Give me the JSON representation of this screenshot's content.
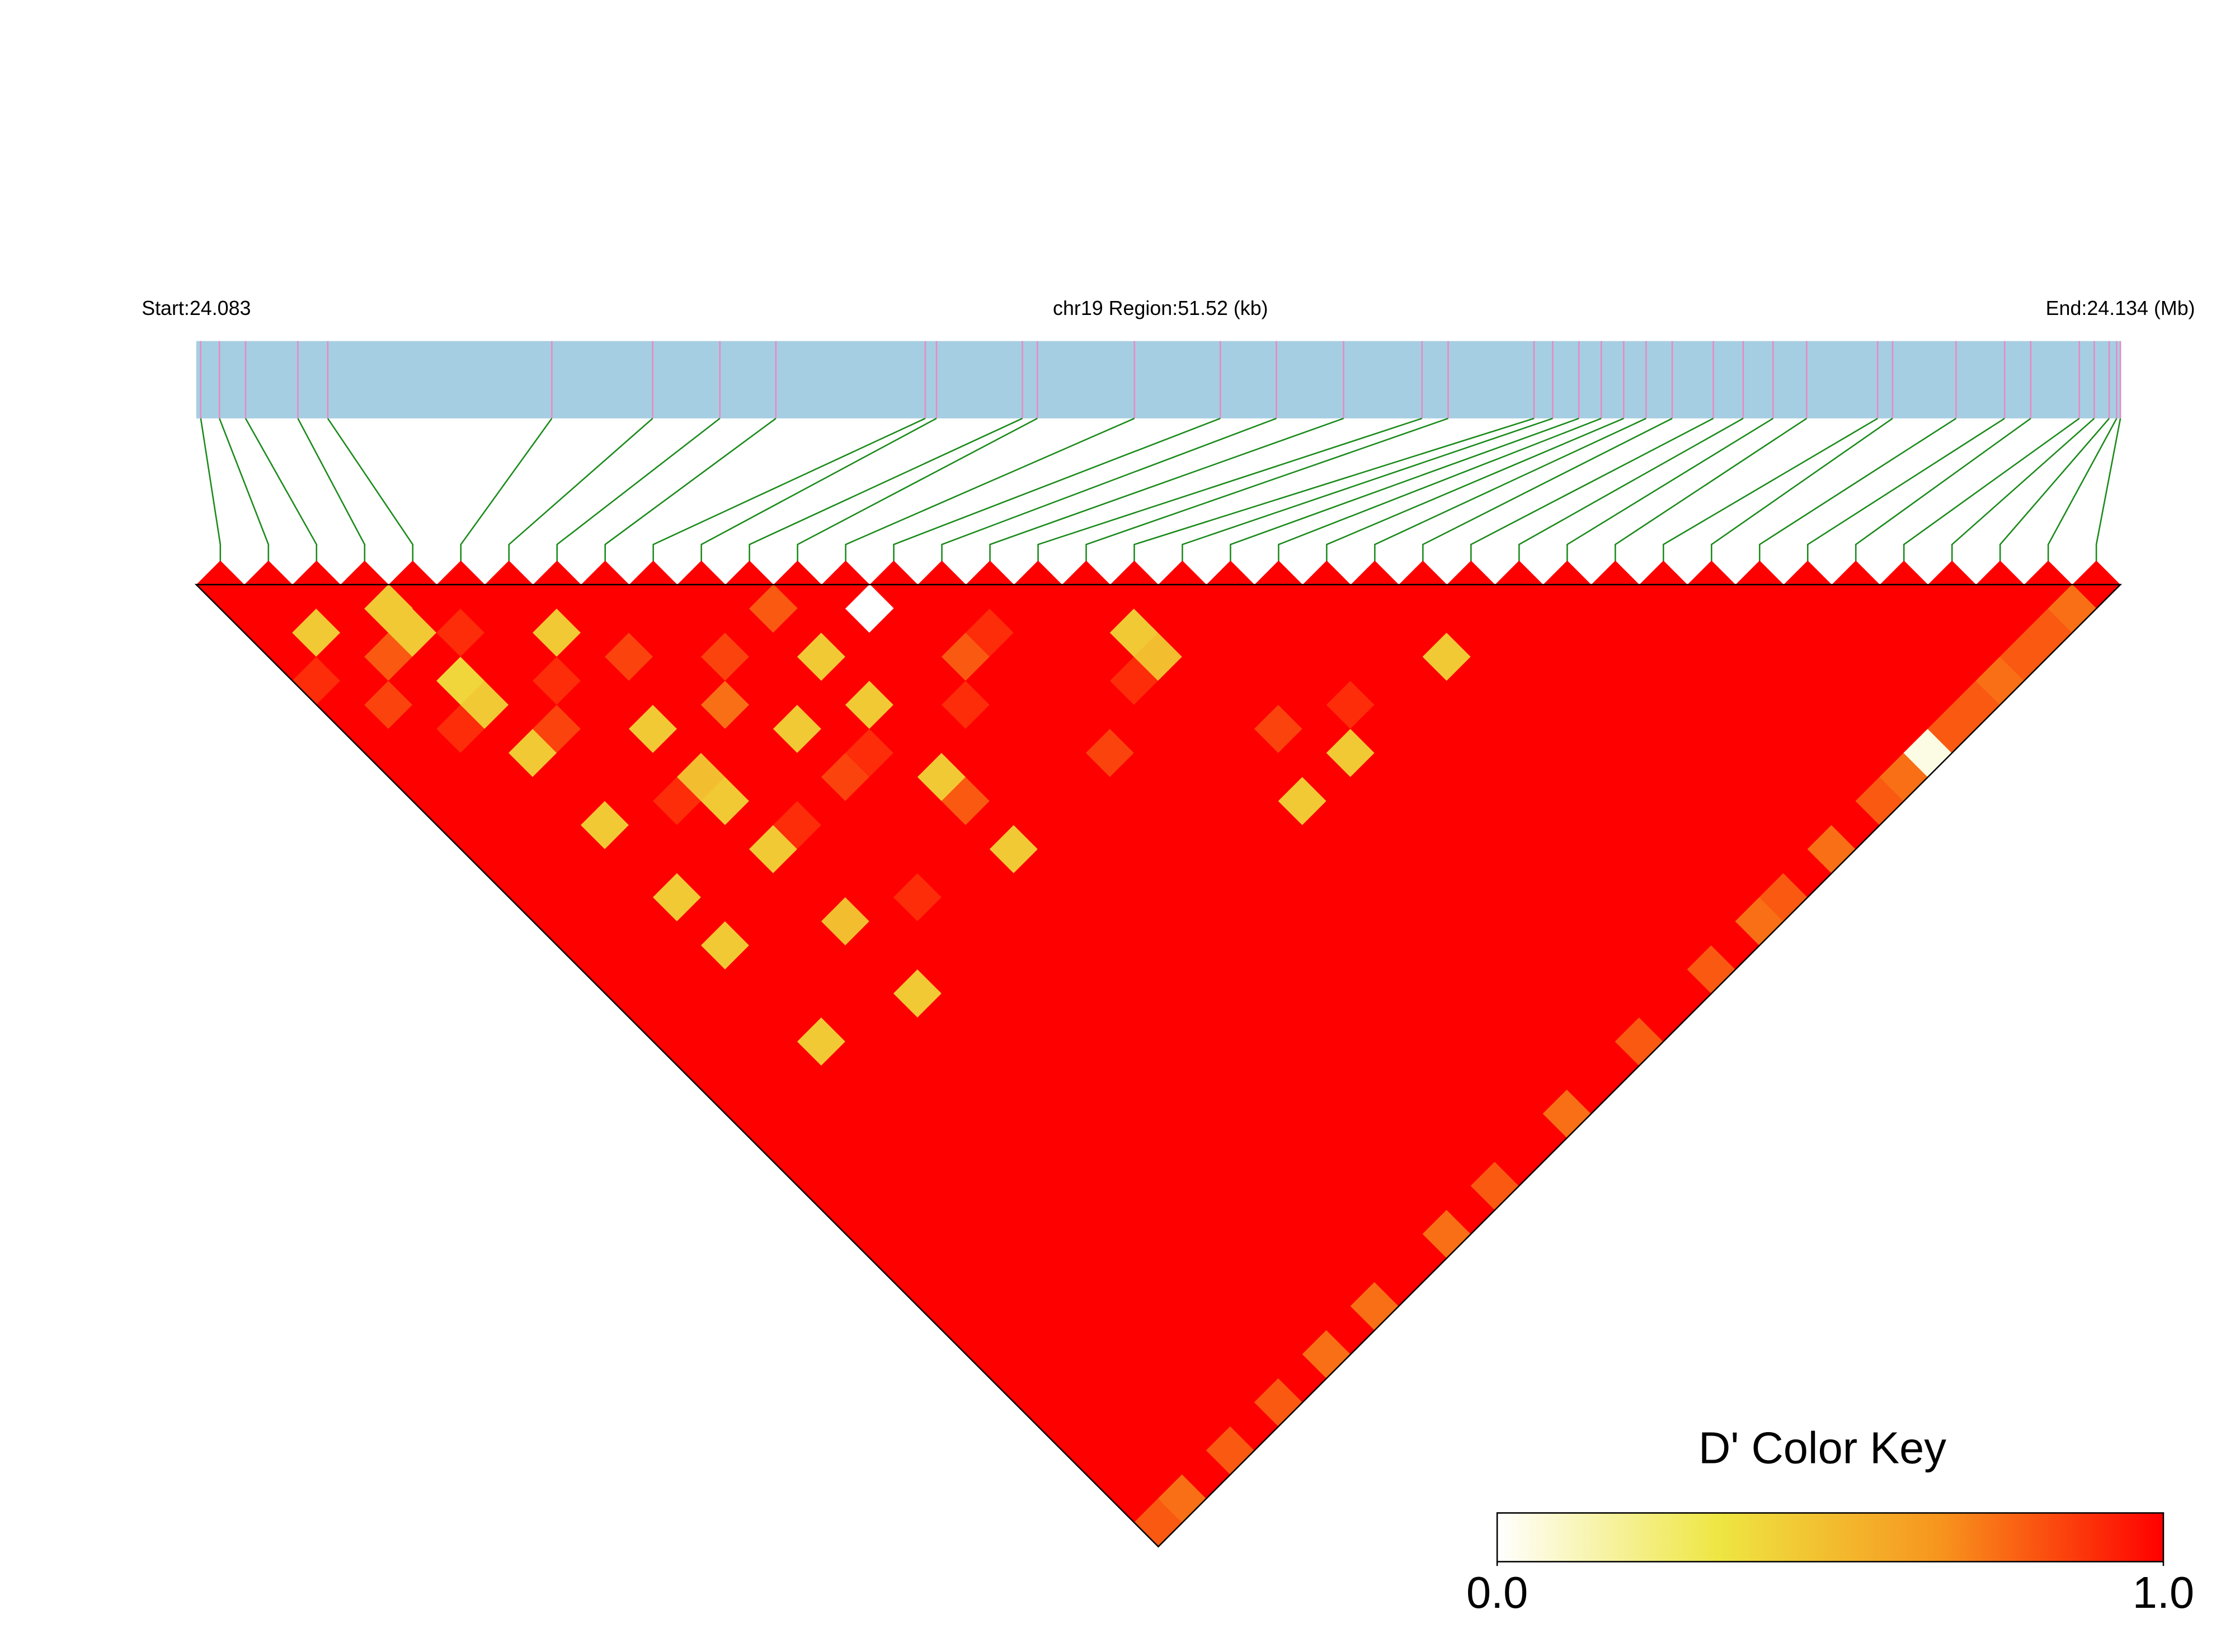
{
  "chart_data": {
    "type": "ld-heatmap",
    "start_label": "Start:24.083",
    "region_label": "chr19 Region:51.52 (kb)",
    "end_label": "End:24.134 (Mb)",
    "xlim": [
      24.08248,
      24.134
    ],
    "positions": [
      24.0826,
      24.0831,
      24.0838,
      24.0852,
      24.086,
      24.092,
      24.0947,
      24.0965,
      24.098,
      24.102,
      24.1023,
      24.1046,
      24.105,
      24.1076,
      24.1099,
      24.1114,
      24.1132,
      24.1153,
      24.116,
      24.1183,
      24.1188,
      24.1195,
      24.1201,
      24.1207,
      24.1213,
      24.122,
      24.1231,
      24.1239,
      24.1247,
      24.1256,
      24.1275,
      24.1279,
      24.1296,
      24.1309,
      24.1316,
      24.1329,
      24.1333,
      24.1337,
      24.1339,
      24.134
    ],
    "dprime": [
      [
        1,
        1,
        1,
        0.9,
        1,
        1,
        1,
        1,
        1,
        1,
        1,
        1,
        1,
        1,
        1,
        1,
        1,
        1,
        1,
        1,
        1,
        1,
        1,
        1,
        1,
        1,
        1,
        1,
        1,
        1,
        1,
        1,
        1,
        1,
        1,
        1,
        1,
        1,
        0.8
      ],
      [
        1,
        0.45,
        1,
        1,
        0.85,
        1,
        1,
        1,
        1,
        1,
        1,
        1,
        1,
        1,
        1,
        1,
        1,
        1,
        1,
        1,
        1,
        1,
        1,
        1,
        1,
        1,
        1,
        1,
        1,
        1,
        1,
        1,
        1,
        1,
        1,
        1,
        1,
        0.75
      ],
      [
        1,
        1,
        0.8,
        1,
        1,
        0.9,
        1,
        1,
        1,
        1,
        1,
        1,
        1,
        1,
        1,
        1,
        1,
        1,
        1,
        1,
        1,
        1,
        1,
        1,
        1,
        1,
        1,
        1,
        1,
        1,
        1,
        1,
        1,
        1,
        1,
        1,
        1
      ],
      [
        0.45,
        0.45,
        1,
        0.4,
        0.45,
        1,
        0.45,
        1,
        1,
        0.45,
        1,
        1,
        0.45,
        1,
        0.45,
        1,
        1,
        1,
        0.45,
        1,
        1,
        1,
        1,
        1,
        1,
        1,
        1,
        1,
        1,
        1,
        1,
        1,
        1,
        1,
        1,
        0.8
      ],
      [
        1,
        0.9,
        1,
        1,
        1,
        0.85,
        1,
        1,
        1,
        1,
        1,
        1,
        1,
        1,
        1,
        1,
        1,
        1,
        1,
        1,
        1,
        1,
        1,
        1,
        1,
        1,
        1,
        1,
        1,
        1,
        1,
        1,
        1,
        1,
        1
      ],
      [
        1,
        1,
        1,
        0.9,
        1,
        1,
        1,
        1,
        0.9,
        1,
        1,
        1,
        1,
        1,
        1,
        1,
        1,
        1,
        1,
        1,
        1,
        1,
        1,
        1,
        1,
        1,
        1,
        1,
        1,
        1,
        1,
        1,
        1,
        0.8
      ],
      [
        1,
        0.45,
        1,
        1,
        1,
        0.45,
        1,
        0.5,
        0.45,
        1,
        0.45,
        1,
        1,
        0.5,
        1,
        1,
        0.45,
        1,
        1,
        1,
        1,
        1,
        1,
        1,
        1,
        1,
        1,
        1,
        1,
        1,
        1,
        1,
        1
      ],
      [
        1,
        1,
        0.85,
        1,
        1,
        1,
        1,
        1,
        1,
        0.9,
        1,
        1,
        1,
        1,
        1,
        1,
        1,
        1,
        1,
        1,
        1,
        1,
        1,
        1,
        1,
        1,
        1,
        1,
        1,
        1,
        1,
        0.75
      ],
      [
        1,
        1,
        1,
        1,
        0.75,
        1,
        1,
        1,
        1,
        1,
        1,
        1,
        0.9,
        1,
        1,
        1,
        1,
        1,
        1,
        1,
        1,
        1,
        1,
        1,
        1,
        1,
        1,
        1,
        1,
        1,
        1
      ],
      [
        1,
        1,
        0.85,
        1,
        1,
        0.45,
        1,
        0.85,
        1,
        1,
        1,
        1,
        1,
        1,
        1,
        1,
        1,
        1,
        1,
        1,
        1,
        1,
        1,
        1,
        1,
        1,
        1,
        1,
        1,
        0.75
      ],
      [
        1,
        1,
        1,
        1,
        1,
        1,
        0.9,
        1,
        1,
        1,
        1,
        1,
        1,
        1,
        1,
        1,
        1,
        1,
        1,
        1,
        1,
        1,
        1,
        1,
        1,
        1,
        1,
        1,
        1
      ],
      [
        0.8,
        1,
        0.45,
        1,
        0.45,
        1,
        1,
        0.45,
        0.8,
        1,
        0.45,
        1,
        1,
        1,
        1,
        1,
        1,
        1,
        1,
        1,
        1,
        1,
        1,
        1,
        1,
        1,
        1,
        1
      ],
      [
        1,
        1,
        1,
        1,
        1,
        1,
        1,
        1,
        1,
        1,
        1,
        1,
        1,
        1,
        1,
        1,
        1,
        1,
        1,
        1,
        1,
        1,
        1,
        1,
        1,
        1,
        0.75
      ],
      [
        0,
        1,
        1,
        1,
        0.9,
        1,
        1,
        1,
        1,
        1,
        1,
        1,
        1,
        1,
        1,
        1,
        1,
        1,
        1,
        1,
        1,
        1,
        1,
        1,
        1,
        1
      ],
      [
        1,
        1,
        0.8,
        1,
        1,
        1,
        1,
        1,
        1,
        1,
        1,
        1,
        1,
        1,
        1,
        1,
        1,
        1,
        1,
        1,
        1,
        1,
        1,
        1,
        0.8
      ],
      [
        1,
        0.9,
        1,
        1,
        1,
        1,
        0.85,
        1,
        1,
        1,
        1,
        1,
        1,
        1,
        1,
        1,
        1,
        1,
        1,
        1,
        1,
        1,
        1,
        1
      ],
      [
        1,
        1,
        1,
        1,
        1,
        1,
        1,
        1,
        1,
        1,
        1,
        1,
        1,
        1,
        1,
        1,
        1,
        1,
        1,
        1,
        1,
        1,
        1
      ],
      [
        1,
        1,
        1,
        0.9,
        1,
        1,
        1,
        1,
        1,
        1,
        1,
        1,
        1,
        1,
        1,
        1,
        1,
        1,
        1,
        1,
        1,
        0.75
      ],
      [
        1,
        0.45,
        0.5,
        1,
        1,
        1,
        1,
        1,
        0.45,
        1,
        1,
        1,
        1,
        1,
        1,
        1,
        1,
        1,
        1,
        1,
        1
      ],
      [
        1,
        1,
        1,
        1,
        1,
        0.85,
        1,
        1,
        1,
        1,
        1,
        1,
        1,
        1,
        1,
        1,
        1,
        1,
        1,
        1
      ],
      [
        1,
        1,
        1,
        1,
        1,
        1,
        0.45,
        1,
        1,
        1,
        1,
        1,
        1,
        1,
        1,
        1,
        1,
        1,
        0.8
      ],
      [
        1,
        1,
        1,
        1,
        0.9,
        1,
        1,
        1,
        1,
        1,
        1,
        1,
        1,
        1,
        1,
        1,
        1,
        1
      ],
      [
        1,
        1,
        1,
        1,
        1,
        1,
        1,
        1,
        1,
        1,
        1,
        1,
        1,
        1,
        1,
        1,
        1
      ],
      [
        1,
        1,
        1,
        1,
        1,
        1,
        1,
        1,
        1,
        1,
        1,
        1,
        1,
        1,
        1,
        0.8
      ],
      [
        1,
        1,
        0.45,
        1,
        1,
        1,
        1,
        1,
        1,
        1,
        1,
        1,
        1,
        1,
        1
      ],
      [
        1,
        1,
        1,
        1,
        1,
        1,
        1,
        1,
        1,
        1,
        1,
        1,
        1,
        0.75
      ],
      [
        1,
        1,
        1,
        1,
        1,
        1,
        1,
        1,
        1,
        1,
        1,
        1,
        0.8
      ],
      [
        1,
        1,
        1,
        1,
        1,
        1,
        1,
        1,
        1,
        1,
        1,
        1
      ],
      [
        1,
        1,
        1,
        1,
        1,
        1,
        1,
        1,
        1,
        1,
        0.75
      ],
      [
        1,
        1,
        1,
        1,
        1,
        1,
        1,
        1,
        1,
        1
      ],
      [
        1,
        1,
        1,
        1,
        1,
        1,
        1,
        1,
        0.8
      ],
      [
        1,
        1,
        1,
        1,
        1,
        1,
        1,
        0.75
      ],
      [
        1,
        1,
        1,
        1,
        1,
        1,
        0.05
      ],
      [
        1,
        1,
        1,
        1,
        1,
        0.8
      ],
      [
        1,
        1,
        1,
        1,
        0.8
      ],
      [
        1,
        1,
        1,
        0.75
      ],
      [
        1,
        1,
        0.8
      ],
      [
        1,
        0.8
      ],
      [
        0.75
      ]
    ],
    "bar_color": "#a6cee3",
    "position_line_color": "#e78ac3",
    "connector_color": "#1a8a1a",
    "color_key": {
      "title": "D' Color Key",
      "colors": [
        "#ffffff",
        "#eee642",
        "#f7941d",
        "#ff0000"
      ],
      "lim": [
        0,
        1
      ],
      "ticks": [
        {
          "value": 0,
          "label": "0.0"
        },
        {
          "value": 1,
          "label": "1.0"
        }
      ]
    }
  }
}
